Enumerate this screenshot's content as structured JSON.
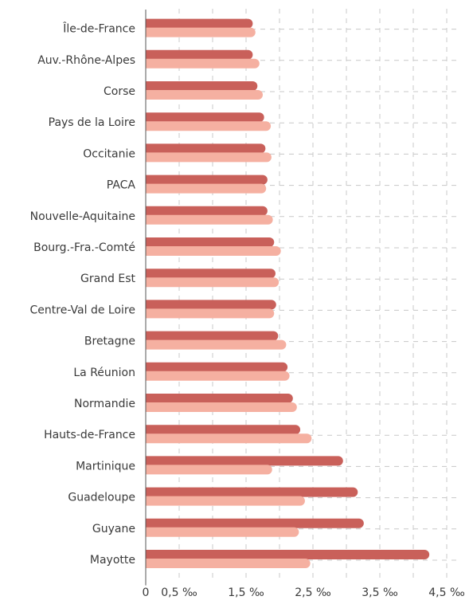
{
  "chart_data": {
    "type": "hbar",
    "categories": [
      "Île-de-France",
      "Auv.-Rhône-Alpes",
      "Corse",
      "Pays de la Loire",
      "Occitanie",
      "PACA",
      "Nouvelle-Aquitaine",
      "Bourg.-Fra.-Comté",
      "Grand Est",
      "Centre-Val de Loire",
      "Bretagne",
      "La Réunion",
      "Normandie",
      "Hauts-de-France",
      "Martinique",
      "Guadeloupe",
      "Guyane",
      "Mayotte"
    ],
    "series": [
      {
        "color": "#c9605a",
        "values": [
          1.6,
          1.6,
          1.67,
          1.77,
          1.79,
          1.82,
          1.82,
          1.92,
          1.94,
          1.95,
          1.98,
          2.12,
          2.2,
          2.31,
          2.95,
          3.17,
          3.26,
          4.24
        ]
      },
      {
        "color": "#f5b0a1",
        "values": [
          1.64,
          1.7,
          1.75,
          1.87,
          1.88,
          1.8,
          1.9,
          2.02,
          1.99,
          1.92,
          2.1,
          2.15,
          2.26,
          2.48,
          1.89,
          2.38,
          2.29,
          2.46
        ]
      }
    ],
    "xlim": [
      0,
      4.5
    ],
    "xticks": [
      0,
      {
        "value": 0.5,
        "label": "0,5 ‰"
      },
      {
        "value": 1.5,
        "label": "1,5 ‰"
      },
      {
        "value": 2.5,
        "label": "2,5 ‰"
      },
      {
        "value": 3.5,
        "label": "3,5 ‰"
      },
      {
        "value": 4.5,
        "label": "4,5 ‰"
      }
    ],
    "xminor": [
      1,
      2,
      3,
      4
    ],
    "grid": true
  }
}
